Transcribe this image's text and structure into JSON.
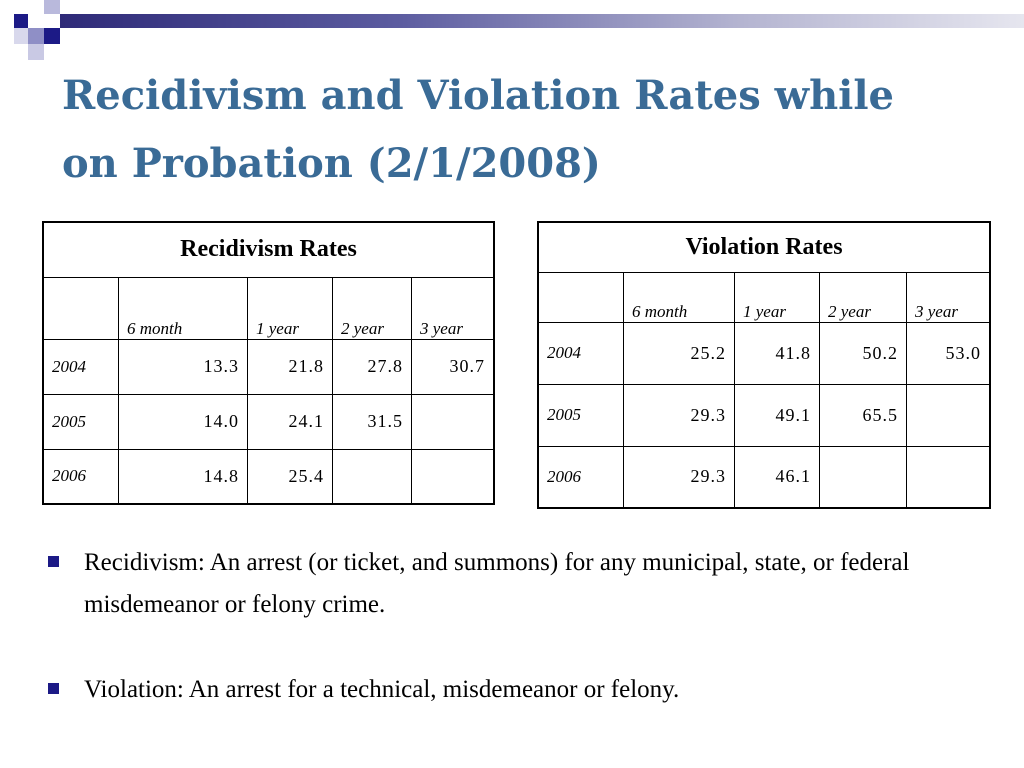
{
  "title": {
    "line1": "Recidivism and Violation Rates while",
    "line2": "on Probation (2/1/2008)"
  },
  "colors": {
    "title": "#3a6b96",
    "bullet": "#1c1a86",
    "header_band": "#2e2a78"
  },
  "recidivism_table": {
    "caption": "Recidivism Rates",
    "columns": [
      "",
      "6 month",
      "1 year",
      "2 year",
      "3 year"
    ],
    "rows": [
      {
        "year": "2004",
        "values": [
          "13.3",
          "21.8",
          "27.8",
          "30.7"
        ]
      },
      {
        "year": "2005",
        "values": [
          "14.0",
          "24.1",
          "31.5",
          ""
        ]
      },
      {
        "year": "2006",
        "values": [
          "14.8",
          "25.4",
          "",
          ""
        ]
      }
    ]
  },
  "violation_table": {
    "caption": "Violation Rates",
    "columns": [
      "",
      "6 month",
      "1 year",
      "2 year",
      "3 year"
    ],
    "rows": [
      {
        "year": "2004",
        "values": [
          "25.2",
          "41.8",
          "50.2",
          "53.0"
        ]
      },
      {
        "year": "2005",
        "values": [
          "29.3",
          "49.1",
          "65.5",
          ""
        ]
      },
      {
        "year": "2006",
        "values": [
          "29.3",
          "46.1",
          "",
          ""
        ]
      }
    ]
  },
  "bullets": [
    "Recidivism: An arrest (or ticket, and summons) for any municipal, state, or federal misdemeanor or felony crime.",
    "Violation: An arrest for a technical, misdemeanor or felony."
  ]
}
